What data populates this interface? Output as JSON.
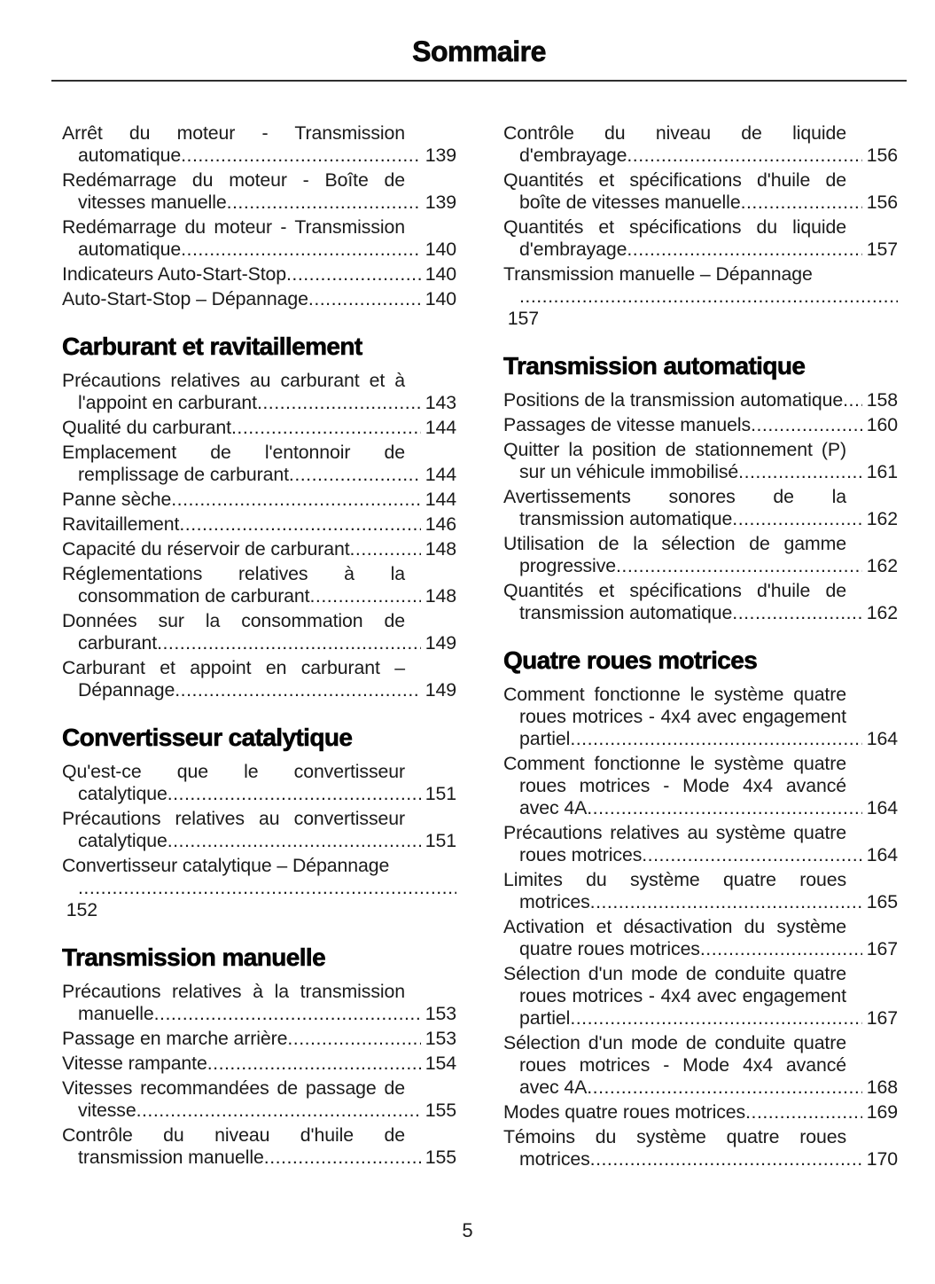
{
  "header": {
    "title": "Sommaire"
  },
  "footer": {
    "page_number": "5"
  },
  "colors": {
    "background": "#ffffff",
    "text": "#1a1a1a",
    "heading": "#050505",
    "rule": "#2e2e2e"
  },
  "columns": [
    {
      "sections": [
        {
          "heading": null,
          "entries": [
            {
              "label": "Arrêt du moteur - Transmission automatique",
              "page": "139"
            },
            {
              "label": "Redémarrage du moteur - Boîte de vitesses manuelle",
              "page": "139"
            },
            {
              "label": "Redémarrage du moteur - Transmission automatique",
              "page": "140"
            },
            {
              "label": "Indicateurs Auto-Start-Stop",
              "page": "140"
            },
            {
              "label": "Auto-Start-Stop – Dépannage",
              "page": "140"
            }
          ]
        },
        {
          "heading": "Carburant et ravitaillement",
          "entries": [
            {
              "label": "Précautions relatives au carburant et à l'appoint en carburant",
              "page": "143"
            },
            {
              "label": "Qualité du carburant",
              "page": "144"
            },
            {
              "label": "Emplacement de l'entonnoir de remplissage de carburant",
              "page": "144"
            },
            {
              "label": "Panne sèche",
              "page": "144"
            },
            {
              "label": "Ravitaillement",
              "page": "146"
            },
            {
              "label": "Capacité du réservoir de carburant",
              "page": "148"
            },
            {
              "label": "Réglementations relatives à la consommation de carburant",
              "page": "148"
            },
            {
              "label": "Données sur la consommation de carburant",
              "page": "149"
            },
            {
              "label": "Carburant et appoint en carburant – Dépannage",
              "page": "149"
            }
          ]
        },
        {
          "heading": "Convertisseur catalytique",
          "entries": [
            {
              "label": "Qu'est-ce que le convertisseur catalytique",
              "page": "151"
            },
            {
              "label": "Précautions relatives au convertisseur catalytique",
              "page": "151"
            },
            {
              "label": "Convertisseur catalytique – Dépannage",
              "page": "152",
              "page_on_new_line": true
            }
          ]
        },
        {
          "heading": "Transmission manuelle",
          "entries": [
            {
              "label": "Précautions relatives à la transmission manuelle",
              "page": "153"
            },
            {
              "label": "Passage en marche arrière",
              "page": "153"
            },
            {
              "label": "Vitesse rampante",
              "page": "154"
            },
            {
              "label": "Vitesses recommandées de passage de vitesse",
              "page": "155"
            },
            {
              "label": "Contrôle du niveau d'huile de transmission manuelle",
              "page": "155"
            }
          ]
        }
      ]
    },
    {
      "sections": [
        {
          "heading": null,
          "entries": [
            {
              "label": "Contrôle du niveau de liquide d'embrayage",
              "page": "156"
            },
            {
              "label": "Quantités et spécifications d'huile de boîte de vitesses manuelle",
              "page": "156"
            },
            {
              "label": "Quantités et spécifications du liquide d'embrayage",
              "page": "157"
            },
            {
              "label": "Transmission manuelle – Dépannage",
              "page": "157",
              "page_on_new_line": true
            }
          ]
        },
        {
          "heading": "Transmission automatique",
          "entries": [
            {
              "label": "Positions de la transmission automatique",
              "page": "158"
            },
            {
              "label": "Passages de vitesse manuels",
              "page": "160"
            },
            {
              "label": "Quitter la position de stationnement (P) sur un véhicule immobilisé",
              "page": "161"
            },
            {
              "label": "Avertissements sonores de la transmission automatique",
              "page": "162"
            },
            {
              "label": "Utilisation de la sélection de gamme progressive",
              "page": "162"
            },
            {
              "label": "Quantités et spécifications d'huile de transmission automatique",
              "page": "162"
            }
          ]
        },
        {
          "heading": "Quatre roues motrices",
          "entries": [
            {
              "label": "Comment fonctionne le système quatre roues motrices - 4x4 avec engagement partiel",
              "page": "164"
            },
            {
              "label": "Comment fonctionne le système quatre roues motrices - Mode 4x4 avancé avec 4A",
              "page": "164"
            },
            {
              "label": "Précautions relatives au système quatre roues motrices",
              "page": "164"
            },
            {
              "label": "Limites du système quatre roues motrices",
              "page": "165"
            },
            {
              "label": "Activation et désactivation du système quatre roues motrices",
              "page": "167"
            },
            {
              "label": "Sélection d'un mode de conduite quatre roues motrices - 4x4 avec engagement partiel",
              "page": "167"
            },
            {
              "label": "Sélection d'un mode de conduite quatre roues motrices - Mode 4x4 avancé avec 4A",
              "page": "168"
            },
            {
              "label": "Modes quatre roues motrices",
              "page": "169"
            },
            {
              "label": "Témoins du système quatre roues motrices",
              "page": "170"
            }
          ]
        }
      ]
    }
  ]
}
